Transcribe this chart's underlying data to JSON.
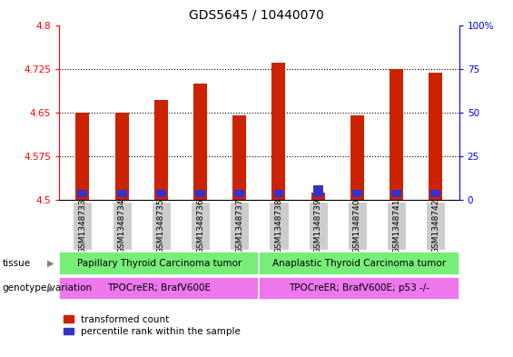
{
  "title": "GDS5645 / 10440070",
  "samples": [
    "GSM1348733",
    "GSM1348734",
    "GSM1348735",
    "GSM1348736",
    "GSM1348737",
    "GSM1348738",
    "GSM1348739",
    "GSM1348740",
    "GSM1348741",
    "GSM1348742"
  ],
  "red_values": [
    4.65,
    4.65,
    4.672,
    4.7,
    4.645,
    4.735,
    4.512,
    4.645,
    4.725,
    4.718
  ],
  "blue_heights": [
    0.012,
    0.012,
    0.012,
    0.012,
    0.012,
    0.012,
    0.02,
    0.012,
    0.012,
    0.012
  ],
  "ymin": 4.5,
  "ymax": 4.8,
  "y_ticks_left": [
    4.5,
    4.575,
    4.65,
    4.725,
    4.8
  ],
  "y_ticks_right": [
    0,
    25,
    50,
    75,
    100
  ],
  "bar_color": "#cc2200",
  "blue_color": "#3333cc",
  "bar_width": 0.35,
  "blue_bar_width": 0.25,
  "tissue_group1_label": "Papillary Thyroid Carcinoma tumor",
  "tissue_group2_label": "Anaplastic Thyroid Carcinoma tumor",
  "genotype_group1_label": "TPOCreER; BrafV600E",
  "genotype_group2_label": "TPOCreER; BrafV600E; p53 -/-",
  "group1_count": 5,
  "group2_count": 5,
  "tissue_row_color": "#77ee77",
  "genotype_row_color": "#ee77ee",
  "xlabel_tissue": "tissue",
  "xlabel_genotype": "genotype/variation",
  "legend_red": "transformed count",
  "legend_blue": "percentile rank within the sample",
  "title_fontsize": 10,
  "tick_fontsize": 7.5,
  "sample_fontsize": 6.5,
  "row_label_fontsize": 7.5,
  "row_text_fontsize": 7.5,
  "legend_fontsize": 7.5
}
